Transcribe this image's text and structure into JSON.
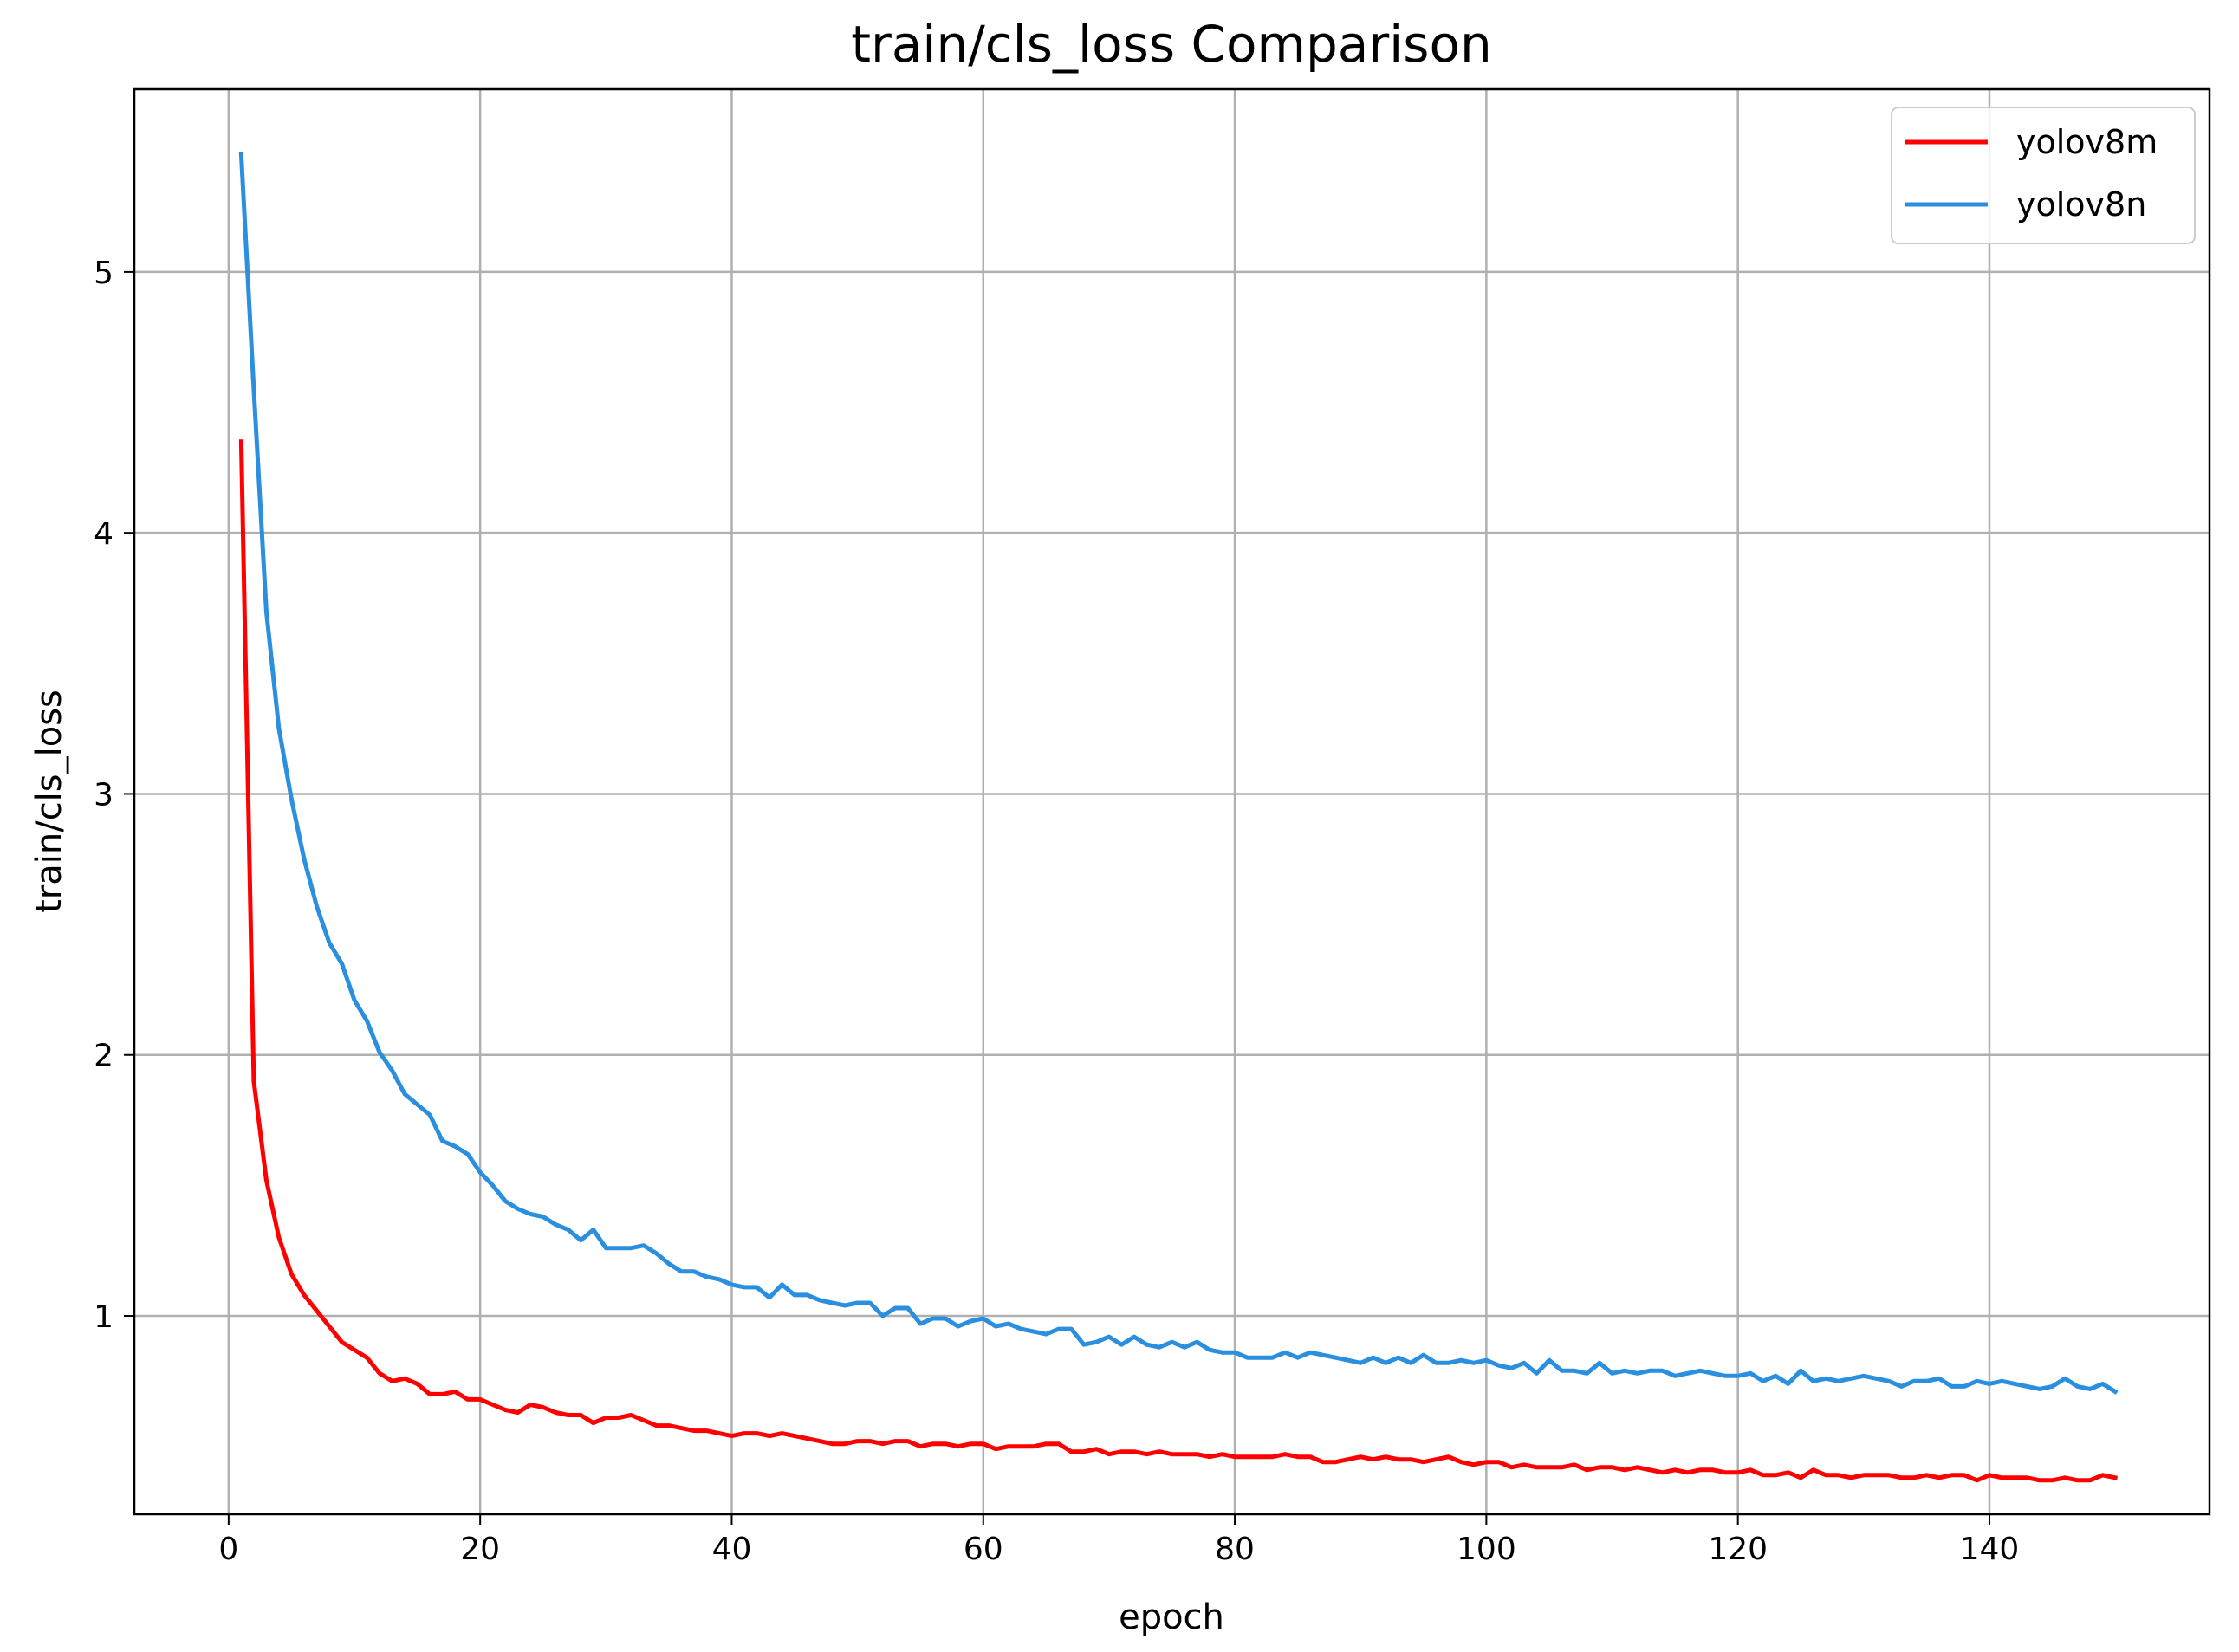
{
  "chart_data": {
    "type": "line",
    "title": "train/cls_loss Comparison",
    "xlabel": "epoch",
    "ylabel": "train/cls_loss",
    "xlim": [
      -7.5,
      157.5
    ],
    "ylim": [
      0.24,
      5.7
    ],
    "xticks": [
      0,
      20,
      40,
      60,
      80,
      100,
      120,
      140
    ],
    "yticks": [
      1,
      2,
      3,
      4,
      5
    ],
    "grid": true,
    "legend_position": "top-right",
    "x": [
      1,
      2,
      3,
      4,
      5,
      6,
      7,
      8,
      9,
      10,
      11,
      12,
      13,
      14,
      15,
      16,
      17,
      18,
      19,
      20,
      21,
      22,
      23,
      24,
      25,
      26,
      27,
      28,
      29,
      30,
      31,
      32,
      33,
      34,
      35,
      36,
      37,
      38,
      39,
      40,
      41,
      42,
      43,
      44,
      45,
      46,
      47,
      48,
      49,
      50,
      51,
      52,
      53,
      54,
      55,
      56,
      57,
      58,
      59,
      60,
      61,
      62,
      63,
      64,
      65,
      66,
      67,
      68,
      69,
      70,
      71,
      72,
      73,
      74,
      75,
      76,
      77,
      78,
      79,
      80,
      81,
      82,
      83,
      84,
      85,
      86,
      87,
      88,
      89,
      90,
      91,
      92,
      93,
      94,
      95,
      96,
      97,
      98,
      99,
      100,
      101,
      102,
      103,
      104,
      105,
      106,
      107,
      108,
      109,
      110,
      111,
      112,
      113,
      114,
      115,
      116,
      117,
      118,
      119,
      120,
      121,
      122,
      123,
      124,
      125,
      126,
      127,
      128,
      129,
      130,
      131,
      132,
      133,
      134,
      135,
      136,
      137,
      138,
      139,
      140,
      141,
      142,
      143,
      144,
      145,
      146,
      147,
      148,
      149,
      150
    ],
    "series": [
      {
        "name": "yolov8m",
        "color": "#ff0000",
        "values": [
          4.35,
          1.9,
          1.52,
          1.3,
          1.16,
          1.08,
          1.02,
          0.96,
          0.9,
          0.87,
          0.84,
          0.78,
          0.75,
          0.76,
          0.74,
          0.7,
          0.7,
          0.71,
          0.68,
          0.68,
          0.66,
          0.64,
          0.63,
          0.66,
          0.65,
          0.63,
          0.62,
          0.62,
          0.59,
          0.61,
          0.61,
          0.62,
          0.6,
          0.58,
          0.58,
          0.57,
          0.56,
          0.56,
          0.55,
          0.54,
          0.55,
          0.55,
          0.54,
          0.55,
          0.54,
          0.53,
          0.52,
          0.51,
          0.51,
          0.52,
          0.52,
          0.51,
          0.52,
          0.52,
          0.5,
          0.51,
          0.51,
          0.5,
          0.51,
          0.51,
          0.49,
          0.5,
          0.5,
          0.5,
          0.51,
          0.51,
          0.48,
          0.48,
          0.49,
          0.47,
          0.48,
          0.48,
          0.47,
          0.48,
          0.47,
          0.47,
          0.47,
          0.46,
          0.47,
          0.46,
          0.46,
          0.46,
          0.46,
          0.47,
          0.46,
          0.46,
          0.44,
          0.44,
          0.45,
          0.46,
          0.45,
          0.46,
          0.45,
          0.45,
          0.44,
          0.45,
          0.46,
          0.44,
          0.43,
          0.44,
          0.44,
          0.42,
          0.43,
          0.42,
          0.42,
          0.42,
          0.43,
          0.41,
          0.42,
          0.42,
          0.41,
          0.42,
          0.41,
          0.4,
          0.41,
          0.4,
          0.41,
          0.41,
          0.4,
          0.4,
          0.41,
          0.39,
          0.39,
          0.4,
          0.38,
          0.41,
          0.39,
          0.39,
          0.38,
          0.39,
          0.39,
          0.39,
          0.38,
          0.38,
          0.39,
          0.38,
          0.39,
          0.39,
          0.37,
          0.39,
          0.38,
          0.38,
          0.38,
          0.37,
          0.37,
          0.38,
          0.37,
          0.37,
          0.39,
          0.38
        ]
      },
      {
        "name": "yolov8n",
        "color": "#2b8fdf",
        "values": [
          5.45,
          4.55,
          3.7,
          3.25,
          2.98,
          2.75,
          2.57,
          2.43,
          2.35,
          2.21,
          2.13,
          2.01,
          1.94,
          1.85,
          1.81,
          1.77,
          1.67,
          1.65,
          1.62,
          1.55,
          1.5,
          1.44,
          1.41,
          1.39,
          1.38,
          1.35,
          1.33,
          1.29,
          1.33,
          1.26,
          1.26,
          1.26,
          1.27,
          1.24,
          1.2,
          1.17,
          1.17,
          1.15,
          1.14,
          1.12,
          1.11,
          1.11,
          1.07,
          1.12,
          1.08,
          1.08,
          1.06,
          1.05,
          1.04,
          1.05,
          1.05,
          1.0,
          1.03,
          1.03,
          0.97,
          0.99,
          0.99,
          0.96,
          0.98,
          0.99,
          0.96,
          0.97,
          0.95,
          0.94,
          0.93,
          0.95,
          0.95,
          0.89,
          0.9,
          0.92,
          0.89,
          0.92,
          0.89,
          0.88,
          0.9,
          0.88,
          0.9,
          0.87,
          0.86,
          0.86,
          0.84,
          0.84,
          0.84,
          0.86,
          0.84,
          0.86,
          0.85,
          0.84,
          0.83,
          0.82,
          0.84,
          0.82,
          0.84,
          0.82,
          0.85,
          0.82,
          0.82,
          0.83,
          0.82,
          0.83,
          0.81,
          0.8,
          0.82,
          0.78,
          0.83,
          0.79,
          0.79,
          0.78,
          0.82,
          0.78,
          0.79,
          0.78,
          0.79,
          0.79,
          0.77,
          0.78,
          0.79,
          0.78,
          0.77,
          0.77,
          0.78,
          0.75,
          0.77,
          0.74,
          0.79,
          0.75,
          0.76,
          0.75,
          0.76,
          0.77,
          0.76,
          0.75,
          0.73,
          0.75,
          0.75,
          0.76,
          0.73,
          0.73,
          0.75,
          0.74,
          0.75,
          0.74,
          0.73,
          0.72,
          0.73,
          0.76,
          0.73,
          0.72,
          0.74,
          0.71
        ]
      }
    ]
  }
}
